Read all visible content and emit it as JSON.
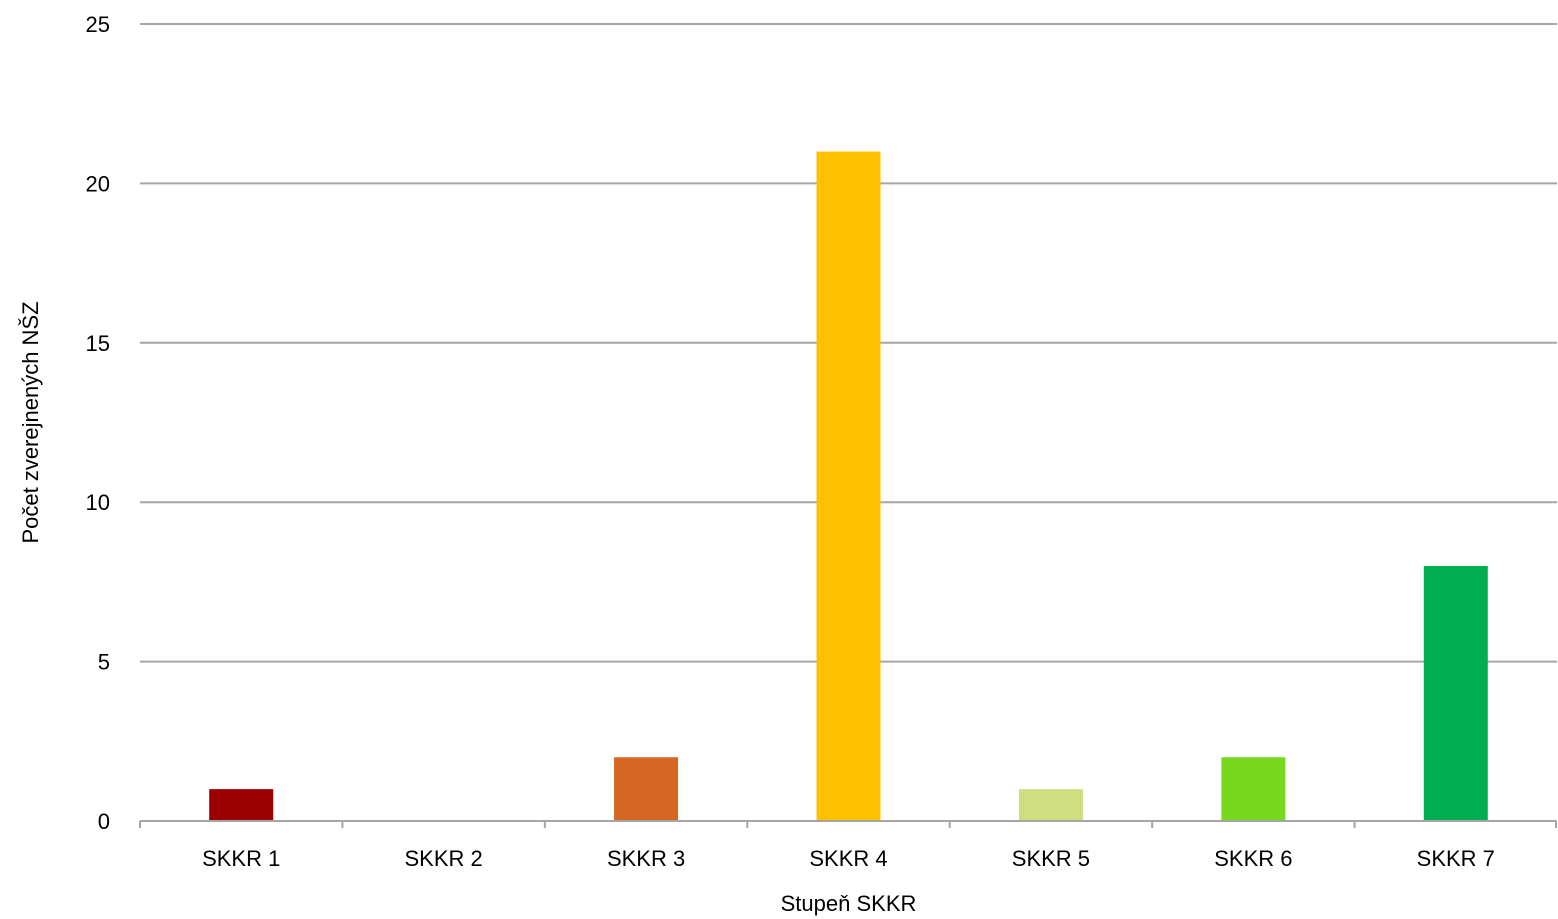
{
  "chart_data": {
    "type": "bar",
    "categories": [
      "SKKR 1",
      "SKKR 2",
      "SKKR 3",
      "SKKR 4",
      "SKKR 5",
      "SKKR 6",
      "SKKR 7"
    ],
    "values": [
      1,
      0,
      2,
      21,
      1,
      2,
      8
    ],
    "colors": [
      "#9b0000",
      "#9b0000",
      "#d66722",
      "#ffc000",
      "#cfde80",
      "#76d91e",
      "#00ae50"
    ],
    "xlabel": "Stupeň SKKR",
    "ylabel": "Počet zverejnených NŠZ",
    "ylim": [
      0,
      25
    ],
    "yticks": [
      0,
      5,
      10,
      15,
      20,
      25
    ],
    "grid": true,
    "legend": "none"
  }
}
